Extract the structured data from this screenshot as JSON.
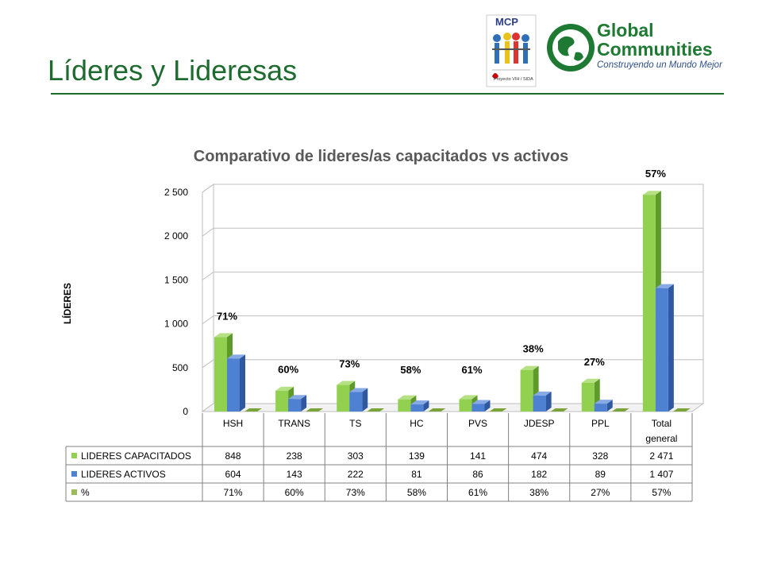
{
  "slide": {
    "title": "Líderes y Lideresas",
    "accent": "#1e6b2f"
  },
  "logos": {
    "mcp_label": "MCP",
    "mcp_sub": "Proyecto VIH / SIDA",
    "gc_line1": "Global",
    "gc_line2": "Communities",
    "gc_sub": "Construyendo un Mundo Mejor"
  },
  "chart_data": {
    "type": "bar",
    "title": "Comparativo de lideres/as capacitados vs activos",
    "ylabel": "LÍDERES",
    "categories": [
      "HSH",
      "TRANS",
      "TS",
      "HC",
      "PVS",
      "JDESP",
      "PPL",
      "Total general"
    ],
    "ylim": [
      0,
      2500
    ],
    "yticks": [
      0,
      500,
      1000,
      1500,
      2000,
      2500
    ],
    "ytick_labels": [
      "0",
      "500",
      "1 000",
      "1 500",
      "2 000",
      "2 500"
    ],
    "series": [
      {
        "name": "LIDERES CAPACITADOS",
        "values": [
          848,
          238,
          303,
          139,
          141,
          474,
          328,
          2471
        ],
        "labels": [
          "848",
          "238",
          "303",
          "139",
          "141",
          "474",
          "328",
          "2 471"
        ],
        "color": "#92d050"
      },
      {
        "name": "LIDERES ACTIVOS",
        "values": [
          604,
          143,
          222,
          81,
          86,
          182,
          89,
          1407
        ],
        "labels": [
          "604",
          "143",
          "222",
          "81",
          "86",
          "182",
          "89",
          "1 407"
        ],
        "color": "#4f81d3"
      },
      {
        "name": "%",
        "values": [
          71,
          60,
          73,
          58,
          61,
          38,
          27,
          57
        ],
        "labels": [
          "71%",
          "60%",
          "73%",
          "58%",
          "61%",
          "38%",
          "27%",
          "57%"
        ],
        "color": "#9bbb59"
      }
    ],
    "data_labels": [
      "71%",
      "60%",
      "73%",
      "58%",
      "61%",
      "38%",
      "27%",
      "57%"
    ],
    "legend": "data-table",
    "grid": true
  }
}
